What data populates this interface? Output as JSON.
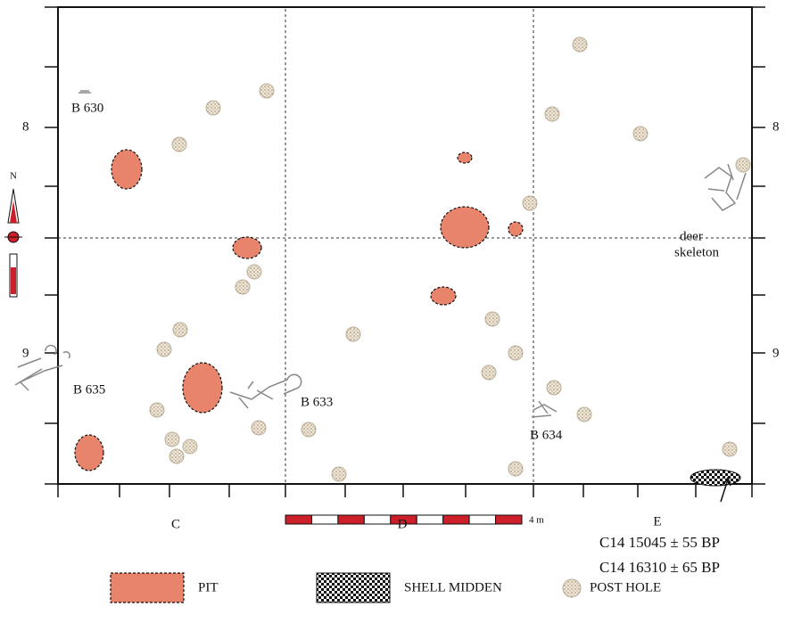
{
  "north": "N",
  "grid_rows": [
    "8",
    "9"
  ],
  "grid_columns": [
    "C",
    "D",
    "E"
  ],
  "burials": [
    "B 630",
    "B 635",
    "B 633",
    "B 634"
  ],
  "deer_label": [
    "deer",
    "skeleton"
  ],
  "scale": "4 m",
  "dates": [
    "C14 15045 ± 55 BP",
    "C14 16310 ± 65 BP"
  ],
  "legend": {
    "pit": "PIT",
    "shell_midden": "SHELL MIDDEN",
    "post_hole": "POST HOLE"
  }
}
